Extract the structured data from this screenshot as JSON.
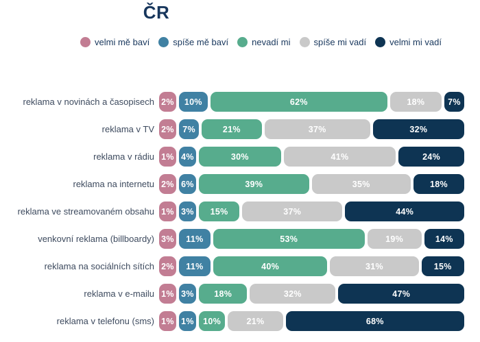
{
  "title": "ČR",
  "colors": {
    "background": "#ffffff",
    "title_text": "#17365c",
    "category_label_text": "#3d4a5e",
    "segment_text": "#ffffff",
    "very_enjoy": "#c27d93",
    "rather_enjoy": "#4081a3",
    "neutral": "#57ac8d",
    "rather_annoy": "#c9c9c9",
    "very_annoy": "#0e3453"
  },
  "legend": [
    {
      "label": "velmi mě baví",
      "color": "#c27d93"
    },
    {
      "label": "spíše mě baví",
      "color": "#4081a3"
    },
    {
      "label": "nevadí mi",
      "color": "#57ac8d"
    },
    {
      "label": "spíše mi vadí",
      "color": "#c9c9c9"
    },
    {
      "label": "velmi mi vadí",
      "color": "#0e3453"
    }
  ],
  "chart_data": {
    "type": "bar",
    "orientation": "horizontal_stacked",
    "title": "ČR",
    "value_suffix": "%",
    "legend_position": "top",
    "grid": false,
    "categories": [
      "reklama v novinách a časopisech",
      "reklama v TV",
      "reklama v rádiu",
      "reklama na internetu",
      "reklama ve streamovaném obsahu",
      "venkovní reklama (billboardy)",
      "reklama na sociálních sítích",
      "reklama v e-mailu",
      "reklama v telefonu (sms)"
    ],
    "series": [
      {
        "name": "velmi mě baví",
        "color": "#c27d93",
        "values": [
          2,
          2,
          1,
          2,
          1,
          3,
          2,
          1,
          1
        ]
      },
      {
        "name": "spíše mě baví",
        "color": "#4081a3",
        "values": [
          10,
          7,
          4,
          6,
          3,
          11,
          11,
          3,
          1
        ]
      },
      {
        "name": "nevadí mi",
        "color": "#57ac8d",
        "values": [
          62,
          21,
          30,
          39,
          15,
          53,
          40,
          18,
          10
        ]
      },
      {
        "name": "spíše mi vadí",
        "color": "#c9c9c9",
        "values": [
          18,
          37,
          41,
          35,
          37,
          19,
          31,
          32,
          21
        ]
      },
      {
        "name": "velmi mi vadí",
        "color": "#0e3453",
        "values": [
          7,
          32,
          24,
          18,
          44,
          14,
          15,
          47,
          68
        ]
      }
    ]
  }
}
